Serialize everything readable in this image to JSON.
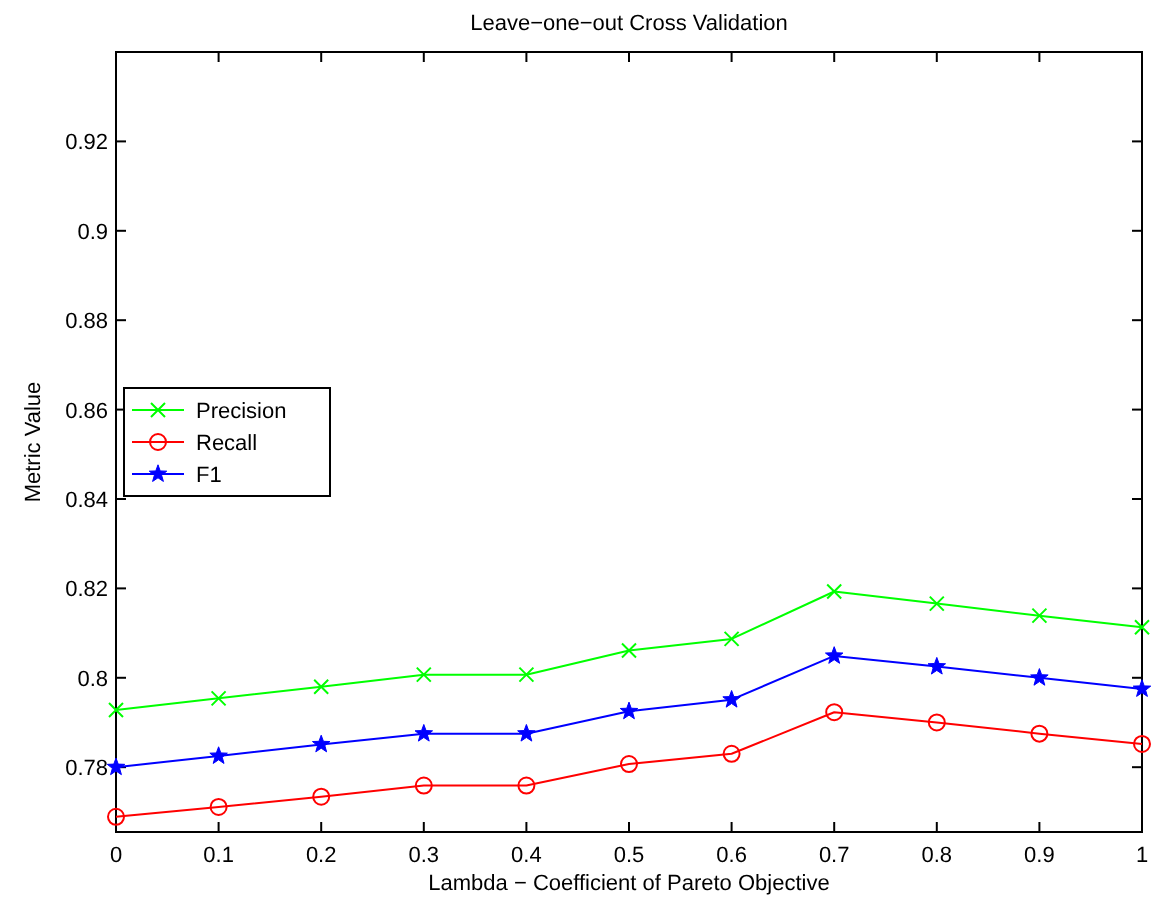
{
  "chart_data": {
    "type": "line",
    "title": "Leave−one−out Cross Validation",
    "xlabel": "Lambda − Coefficient of Pareto Objective",
    "ylabel": "Metric Value",
    "x": [
      0,
      0.1,
      0.2,
      0.3,
      0.4,
      0.5,
      0.6,
      0.7,
      0.8,
      0.9,
      1
    ],
    "xlim": [
      0,
      1
    ],
    "xticks": [
      0,
      0.1,
      0.2,
      0.3,
      0.4,
      0.5,
      0.6,
      0.7,
      0.8,
      0.9,
      1
    ],
    "ylim": [
      0.7655,
      0.94
    ],
    "yticks": [
      0.78,
      0.8,
      0.82,
      0.84,
      0.86,
      0.88,
      0.9,
      0.92
    ],
    "grid": false,
    "legend": "left",
    "line_style": "solid",
    "series": [
      {
        "name": "Precision",
        "color": "#00ff00",
        "marker": "cross",
        "values": [
          0.7928,
          0.7954,
          0.798,
          0.8007,
          0.8007,
          0.8061,
          0.8087,
          0.8193,
          0.8166,
          0.8139,
          0.8113
        ]
      },
      {
        "name": "Recall",
        "color": "#ff0000",
        "marker": "circle",
        "values": [
          0.7689,
          0.7711,
          0.7734,
          0.7759,
          0.7759,
          0.7807,
          0.783,
          0.7923,
          0.79,
          0.7875,
          0.7852
        ]
      },
      {
        "name": "F1",
        "color": "#0000ff",
        "marker": "star",
        "values": [
          0.78,
          0.7825,
          0.7851,
          0.7875,
          0.7875,
          0.7925,
          0.7951,
          0.8049,
          0.8025,
          0.8,
          0.7975
        ]
      }
    ]
  }
}
